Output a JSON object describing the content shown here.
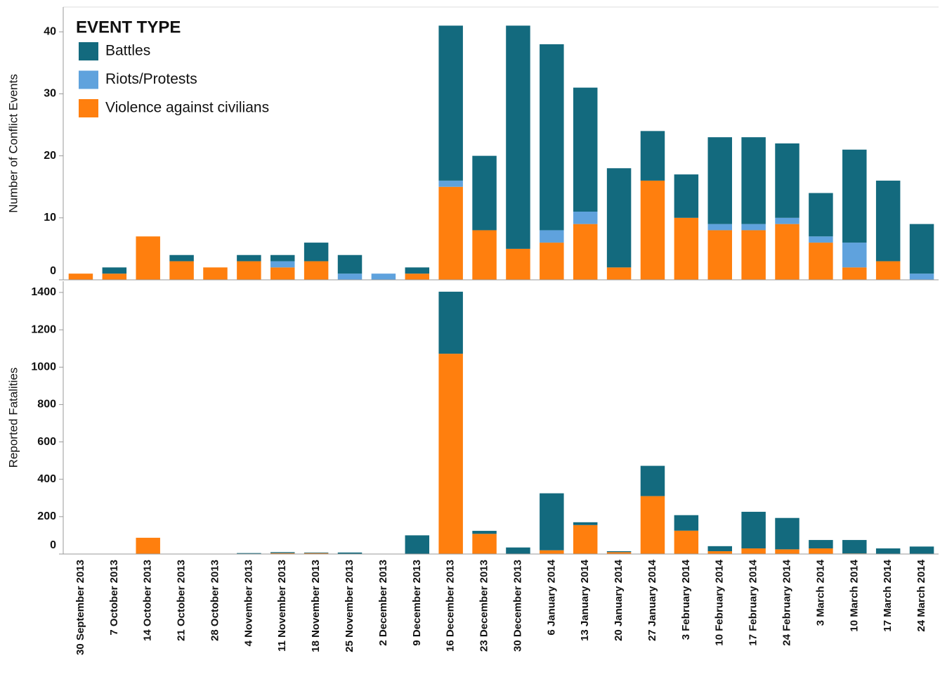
{
  "chart_data": [
    {
      "type": "bar",
      "stacked": true,
      "y_label": "Number of Conflict Events",
      "legend_title": "EVENT TYPE",
      "legend": "top-left",
      "ylim": [
        0,
        44
      ],
      "yticks": [
        0,
        10,
        20,
        30,
        40
      ],
      "series": [
        {
          "name": "Violence against civilians",
          "color": "#ff7f0e",
          "values": [
            1,
            1,
            7,
            3,
            2,
            3,
            2,
            3,
            0,
            0,
            1,
            15,
            8,
            5,
            6,
            9,
            2,
            16,
            10,
            8,
            8,
            9,
            6,
            2,
            3,
            0
          ]
        },
        {
          "name": "Riots/Protests",
          "color": "#5fa2dd",
          "values": [
            0,
            0,
            0,
            0,
            0,
            0,
            1,
            0,
            1,
            1,
            0,
            1,
            0,
            0,
            2,
            2,
            0,
            0,
            0,
            1,
            1,
            1,
            1,
            4,
            0,
            1
          ]
        },
        {
          "name": "Battles",
          "color": "#136a7e",
          "values": [
            0,
            1,
            0,
            1,
            0,
            1,
            1,
            3,
            3,
            0,
            1,
            25,
            12,
            36,
            30,
            20,
            16,
            8,
            7,
            14,
            14,
            12,
            7,
            15,
            13,
            8
          ]
        }
      ]
    },
    {
      "type": "bar",
      "stacked": true,
      "y_label": "Reported Fatalities",
      "ylim": [
        0,
        1460
      ],
      "yticks": [
        0,
        200,
        400,
        600,
        800,
        1000,
        1200,
        1400
      ],
      "categories": [
        "30 September 2013",
        "7 October 2013",
        "14 October 2013",
        "21 October 2013",
        "28 October 2013",
        "4 November 2013",
        "11 November 2013",
        "18 November 2013",
        "25 November 2013",
        "2 December 2013",
        "9 December 2013",
        "16 December 2013",
        "23 December 2013",
        "30 December 2013",
        "6 January 2014",
        "13 January 2014",
        "20 January 2014",
        "27 January 2014",
        "3 February 2014",
        "10 February 2014",
        "17 February 2014",
        "24 February 2014",
        "3 March 2014",
        "10 March 2014",
        "17 March 2014",
        "24 March 2014"
      ],
      "series": [
        {
          "color": "#ff7f0e",
          "values": [
            0,
            0,
            87,
            0,
            0,
            0,
            5,
            5,
            0,
            0,
            0,
            1072,
            108,
            0,
            20,
            155,
            10,
            310,
            125,
            15,
            30,
            25,
            30,
            3,
            0,
            0
          ]
        },
        {
          "color": "#136a7e",
          "values": [
            0,
            0,
            0,
            0,
            0,
            5,
            5,
            3,
            8,
            0,
            100,
            332,
            16,
            35,
            305,
            15,
            5,
            162,
            83,
            27,
            196,
            168,
            45,
            72,
            30,
            40
          ]
        }
      ]
    }
  ]
}
